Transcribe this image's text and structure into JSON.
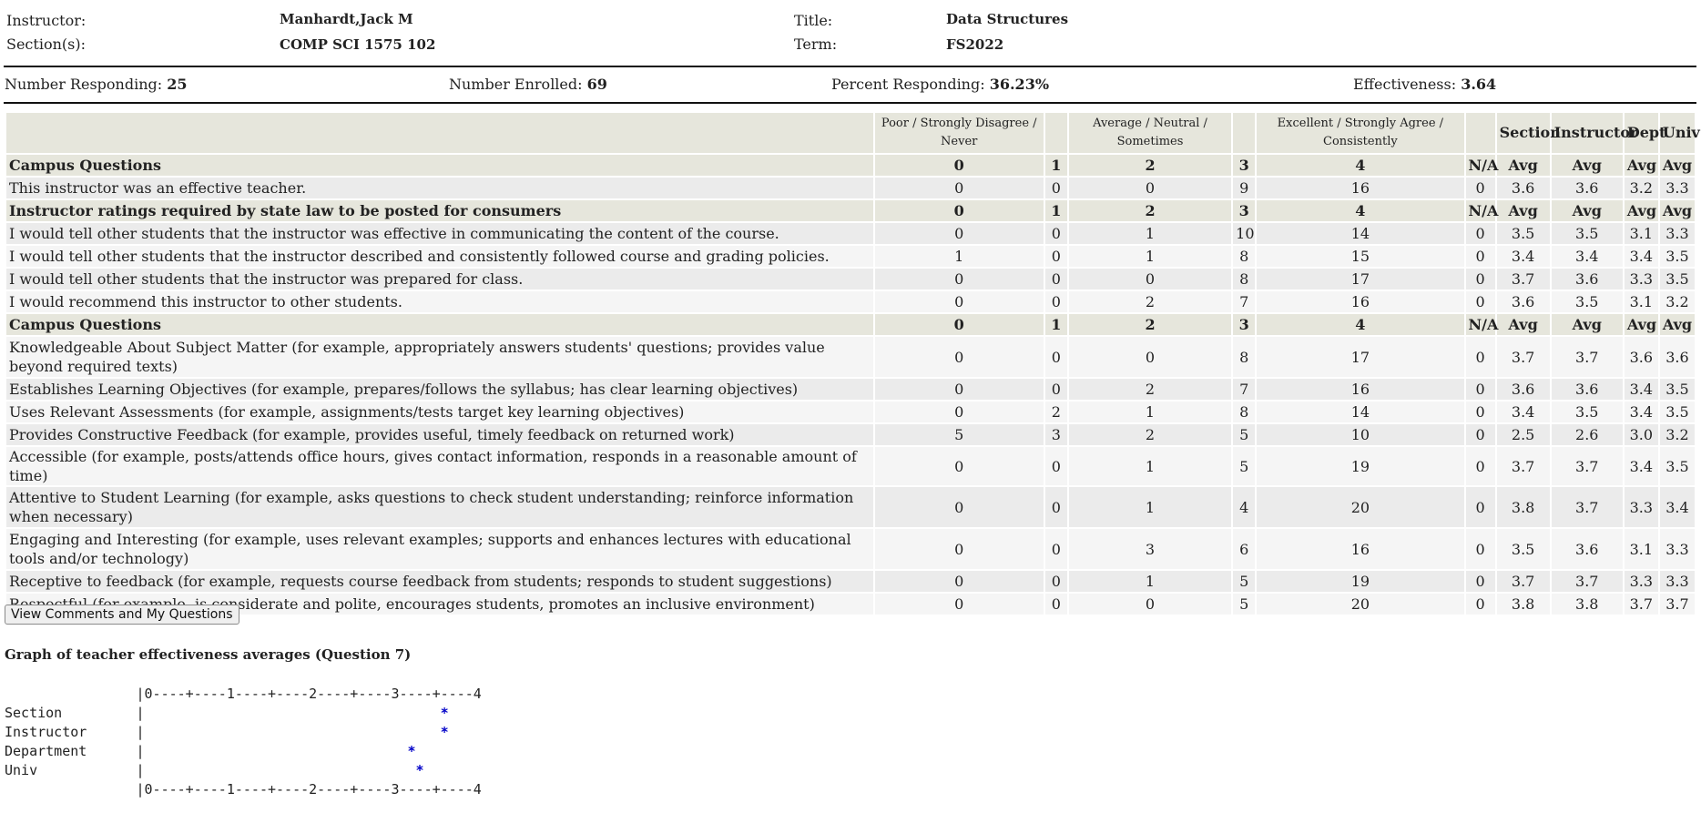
{
  "header": {
    "instructor_label": "Instructor:",
    "instructor_value": "Manhardt,Jack M",
    "sections_label": "Section(s):",
    "sections_value": "COMP SCI 1575 102",
    "title_label": "Title:",
    "title_value": "Data Structures",
    "term_label": "Term:",
    "term_value": "FS2022"
  },
  "stats": {
    "responding_label": "Number Responding:",
    "responding_value": "25",
    "enrolled_label": "Number Enrolled:",
    "enrolled_value": "69",
    "percent_label": "Percent Responding:",
    "percent_value": "36.23%",
    "effectiveness_label": "Effectiveness:",
    "effectiveness_value": "3.64"
  },
  "table": {
    "head": [
      "",
      "Poor / Strongly Disagree / Never",
      "",
      "Average / Neutral / Sometimes",
      "",
      "Excellent / Strongly Agree / Consistently",
      "",
      "Section",
      "Instructor",
      "Dept",
      "Univ"
    ],
    "rows": [
      {
        "type": "sec",
        "cells": [
          "Campus Questions",
          "0",
          "1",
          "2",
          "3",
          "4",
          "N/A",
          "Avg",
          "Avg",
          "Avg",
          "Avg"
        ]
      },
      {
        "type": "row",
        "cells": [
          "This instructor was an effective teacher.",
          "0",
          "0",
          "0",
          "9",
          "16",
          "0",
          "3.6",
          "3.6",
          "3.2",
          "3.3"
        ]
      },
      {
        "type": "sec",
        "cells": [
          "Instructor ratings required by state law to be posted for consumers",
          "0",
          "1",
          "2",
          "3",
          "4",
          "N/A",
          "Avg",
          "Avg",
          "Avg",
          "Avg"
        ]
      },
      {
        "type": "row",
        "cells": [
          "I would tell other students that the instructor was effective in communicating the content of the course.",
          "0",
          "0",
          "1",
          "10",
          "14",
          "0",
          "3.5",
          "3.5",
          "3.1",
          "3.3"
        ]
      },
      {
        "type": "row",
        "cells": [
          "I would tell other students that the instructor described and consistently followed course and grading policies.",
          "1",
          "0",
          "1",
          "8",
          "15",
          "0",
          "3.4",
          "3.4",
          "3.4",
          "3.5"
        ]
      },
      {
        "type": "row",
        "cells": [
          "I would tell other students that the instructor was prepared for class.",
          "0",
          "0",
          "0",
          "8",
          "17",
          "0",
          "3.7",
          "3.6",
          "3.3",
          "3.5"
        ]
      },
      {
        "type": "row",
        "cells": [
          "I would recommend this instructor to other students.",
          "0",
          "0",
          "2",
          "7",
          "16",
          "0",
          "3.6",
          "3.5",
          "3.1",
          "3.2"
        ]
      },
      {
        "type": "sec",
        "cells": [
          "Campus Questions",
          "0",
          "1",
          "2",
          "3",
          "4",
          "N/A",
          "Avg",
          "Avg",
          "Avg",
          "Avg"
        ]
      },
      {
        "type": "tall",
        "cells": [
          "Knowledgeable About Subject Matter (for example, appropriately answers students' questions; provides value beyond required texts)",
          "0",
          "0",
          "0",
          "8",
          "17",
          "0",
          "3.7",
          "3.7",
          "3.6",
          "3.6"
        ]
      },
      {
        "type": "row",
        "cells": [
          "Establishes Learning Objectives (for example, prepares/follows the syllabus; has clear learning objectives)",
          "0",
          "0",
          "2",
          "7",
          "16",
          "0",
          "3.6",
          "3.6",
          "3.4",
          "3.5"
        ]
      },
      {
        "type": "row",
        "cells": [
          "Uses Relevant Assessments (for example, assignments/tests target key learning objectives)",
          "0",
          "2",
          "1",
          "8",
          "14",
          "0",
          "3.4",
          "3.5",
          "3.4",
          "3.5"
        ]
      },
      {
        "type": "row",
        "cells": [
          "Provides Constructive Feedback (for example, provides useful, timely feedback on returned work)",
          "5",
          "3",
          "2",
          "5",
          "10",
          "0",
          "2.5",
          "2.6",
          "3.0",
          "3.2"
        ]
      },
      {
        "type": "row",
        "cells": [
          "Accessible (for example, posts/attends office hours, gives contact information, responds in a reasonable amount of time)",
          "0",
          "0",
          "1",
          "5",
          "19",
          "0",
          "3.7",
          "3.7",
          "3.4",
          "3.5"
        ]
      },
      {
        "type": "tall",
        "cells": [
          "Attentive to Student Learning (for example, asks questions to check student understanding; reinforce information when necessary)",
          "0",
          "0",
          "1",
          "4",
          "20",
          "0",
          "3.8",
          "3.7",
          "3.3",
          "3.4"
        ]
      },
      {
        "type": "tall",
        "cells": [
          "Engaging and Interesting (for example, uses relevant examples; supports and enhances lectures with educational tools and/or technology)",
          "0",
          "0",
          "3",
          "6",
          "16",
          "0",
          "3.5",
          "3.6",
          "3.1",
          "3.3"
        ]
      },
      {
        "type": "row",
        "cells": [
          "Receptive to feedback (for example, requests course feedback from students; responds to student suggestions)",
          "0",
          "0",
          "1",
          "5",
          "19",
          "0",
          "3.7",
          "3.7",
          "3.3",
          "3.3"
        ]
      },
      {
        "type": "row",
        "cells": [
          "Respectful (for example, is considerate and polite, encourages students, promotes an inclusive environment)",
          "0",
          "0",
          "0",
          "5",
          "20",
          "0",
          "3.8",
          "3.8",
          "3.7",
          "3.7"
        ]
      }
    ]
  },
  "button_label": "View Comments and My Questions",
  "graph": {
    "title": "Graph of teacher effectiveness averages (Question 7)",
    "scale_line": "|0----+----1----+----2----+----3----+----4",
    "rows": [
      {
        "label": "Section",
        "value": 3.6
      },
      {
        "label": "Instructor",
        "value": 3.6
      },
      {
        "label": "Department",
        "value": 3.2
      },
      {
        "label": "Univ",
        "value": 3.3
      }
    ]
  },
  "colors": {
    "header_bg": "#e6e6dc",
    "row_alt": "#ebebeb",
    "row_white": "#f5f5f5",
    "star": "#0000c8",
    "dash": "#4a78c8"
  }
}
